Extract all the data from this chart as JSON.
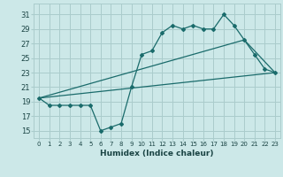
{
  "title": "",
  "xlabel": "Humidex (Indice chaleur)",
  "ylabel": "",
  "bg_color": "#cce8e8",
  "grid_color": "#aacccc",
  "line_color": "#1a6b6b",
  "xlim": [
    -0.5,
    23.5
  ],
  "ylim": [
    14.0,
    32.5
  ],
  "xticks": [
    0,
    1,
    2,
    3,
    4,
    5,
    6,
    7,
    8,
    9,
    10,
    11,
    12,
    13,
    14,
    15,
    16,
    17,
    18,
    19,
    20,
    21,
    22,
    23
  ],
  "yticks": [
    15,
    17,
    19,
    21,
    23,
    25,
    27,
    29,
    31
  ],
  "series1_x": [
    0,
    1,
    2,
    3,
    4,
    5,
    6,
    7,
    8,
    9,
    10,
    11,
    12,
    13,
    14,
    15,
    16,
    17,
    18,
    19,
    20,
    21,
    22,
    23
  ],
  "series1_y": [
    19.5,
    18.5,
    18.5,
    18.5,
    18.5,
    18.5,
    15.0,
    15.5,
    16.0,
    21.0,
    25.5,
    26.0,
    28.5,
    29.5,
    29.0,
    29.5,
    29.0,
    29.0,
    31.0,
    29.5,
    27.5,
    25.5,
    23.5,
    23.0
  ],
  "series2_x": [
    0,
    20,
    23
  ],
  "series2_y": [
    19.5,
    27.5,
    23.0
  ],
  "series3_x": [
    0,
    23
  ],
  "series3_y": [
    19.5,
    23.0
  ]
}
